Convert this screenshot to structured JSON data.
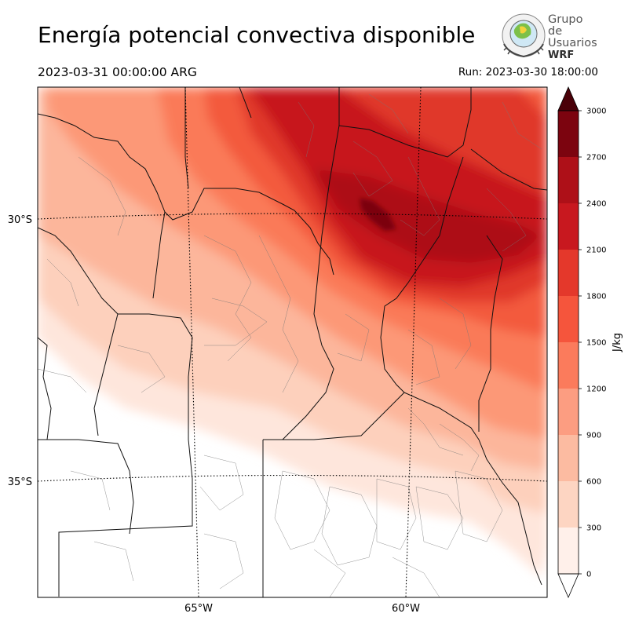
{
  "header": {
    "title": "Energía potencial convectiva disponible",
    "valid_time": "2023-03-31 00:00:00 ARG",
    "run_time": "Run: 2023-03-30 18:00:00"
  },
  "logo": {
    "line1": "Grupo de",
    "line2": "Usuarios",
    "line3": "WRF"
  },
  "chart_data": {
    "type": "heatmap",
    "title": "Energía potencial convectiva disponible",
    "units": "J/kg",
    "lat_labels": [
      "30°S",
      "35°S"
    ],
    "lon_labels": [
      "65°W",
      "60°W"
    ],
    "colorbar_ticks": [
      0,
      300,
      600,
      900,
      1200,
      1500,
      1800,
      2100,
      2400,
      2700,
      3000
    ],
    "colorbar_colors": [
      "#fff0ea",
      "#fdd5c2",
      "#fcbba1",
      "#fc9d81",
      "#fb7b5c",
      "#f5553c",
      "#e4382b",
      "#c8181f",
      "#ae1018",
      "#7c040f"
    ],
    "colorbar_extend": "both",
    "max_region_value": 2700
  }
}
